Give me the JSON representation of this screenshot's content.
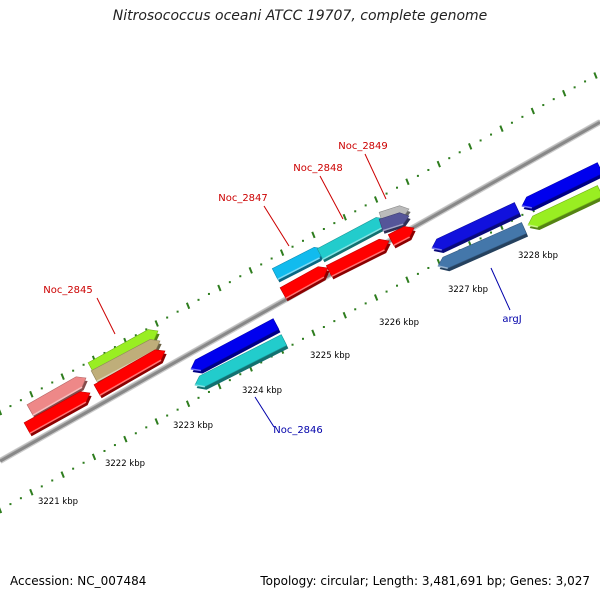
{
  "title": "Nitrosococcus oceani ATCC 19707, complete genome",
  "footer": {
    "accession": "Accession: NC_007484",
    "stats": "Topology: circular; Length: 3,481,691 bp; Genes: 3,027"
  },
  "colors": {
    "backbone": "#888888",
    "tick": "#2e7d1e",
    "forward_label": "#cc0000",
    "reverse_label": "#0000aa",
    "axis_label": "#000000"
  },
  "scale_labels": [
    "3221 kbp",
    "3222 kbp",
    "3223 kbp",
    "3224 kbp",
    "3225 kbp",
    "3226 kbp",
    "3227 kbp",
    "3228 kbp"
  ],
  "gene_labels": [
    {
      "text": "Noc_2845",
      "strand": "forward"
    },
    {
      "text": "Noc_2846",
      "strand": "reverse"
    },
    {
      "text": "Noc_2847",
      "strand": "forward"
    },
    {
      "text": "Noc_2848",
      "strand": "forward"
    },
    {
      "text": "Noc_2849",
      "strand": "forward"
    },
    {
      "text": "argJ",
      "strand": "reverse"
    }
  ],
  "features": [
    {
      "name": "Noc_2845",
      "strand": "forward",
      "color": "#ee8888"
    },
    {
      "name": "Noc_2845",
      "strand": "forward",
      "color": "#ff0000"
    },
    {
      "name": "Noc_2845",
      "strand": "forward",
      "color": "#99ee22"
    },
    {
      "name": "Noc_2845",
      "strand": "forward",
      "color": "#bfae7a"
    },
    {
      "name": "Noc_2845",
      "strand": "forward",
      "color": "#ff0000"
    },
    {
      "name": "Noc_2846",
      "strand": "reverse",
      "color": "#0000ee"
    },
    {
      "name": "Noc_2846",
      "strand": "reverse",
      "color": "#22cccc"
    },
    {
      "name": "Noc_2847",
      "strand": "forward",
      "color": "#11bbee"
    },
    {
      "name": "Noc_2847",
      "strand": "forward",
      "color": "#ff0000"
    },
    {
      "name": "Noc_2848",
      "strand": "forward",
      "color": "#22cccc"
    },
    {
      "name": "Noc_2848",
      "strand": "forward",
      "color": "#ff0000"
    },
    {
      "name": "Noc_2849",
      "strand": "forward",
      "color": "#bbbbbb"
    },
    {
      "name": "Noc_2849",
      "strand": "forward",
      "color": "#555599"
    },
    {
      "name": "Noc_2849",
      "strand": "forward",
      "color": "#ff0000"
    },
    {
      "name": "argJ",
      "strand": "reverse",
      "color": "#1111dd"
    },
    {
      "name": "argJ",
      "strand": "reverse",
      "color": "#4477aa"
    },
    {
      "name": "argJ",
      "strand": "reverse",
      "color": "#0000ee"
    },
    {
      "name": "argJ",
      "strand": "reverse",
      "color": "#99ee22"
    }
  ]
}
